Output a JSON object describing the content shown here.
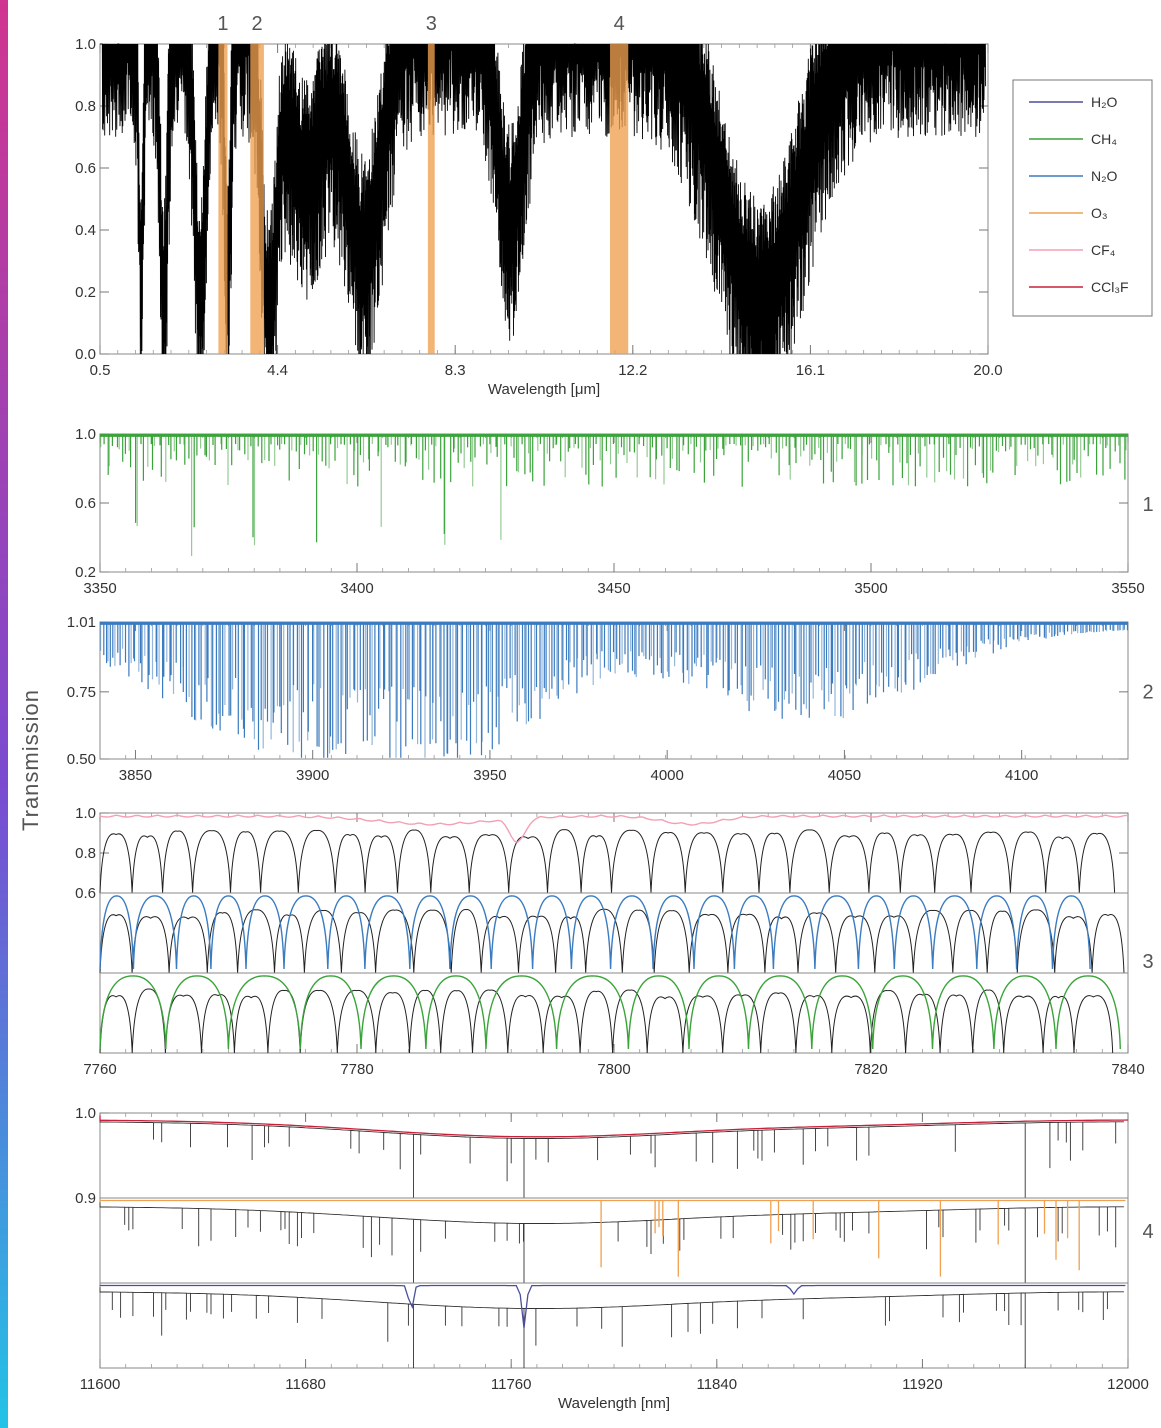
{
  "figure": {
    "ylabel": "Transmission",
    "legend": {
      "placement": "right-of-top-panel",
      "entries": [
        {
          "name": "H₂O",
          "color": "#4b4f9a"
        },
        {
          "name": "CH₄",
          "color": "#3aa33a"
        },
        {
          "name": "N₂O",
          "color": "#3b7bbf"
        },
        {
          "name": "O₃",
          "color": "#f0a050"
        },
        {
          "name": "CF₄",
          "color": "#f3a0b4"
        },
        {
          "name": "CCl₃F",
          "color": "#c8203a"
        }
      ]
    }
  },
  "chart_data": [
    {
      "id": "overview",
      "type": "line",
      "xlabel": "Wavelength [μm]",
      "xlim": [
        0.5,
        20.0
      ],
      "ylim": [
        0.0,
        1.0
      ],
      "xticks": [
        "0.5",
        "4.4",
        "8.3",
        "12.2",
        "16.1",
        "20.0"
      ],
      "yticks": [
        "0.0",
        "0.2",
        "0.4",
        "0.6",
        "0.8",
        "1.0"
      ],
      "highlight_bands": [
        {
          "label": "1",
          "x": [
            3.1,
            3.3
          ]
        },
        {
          "label": "2",
          "x": [
            3.8,
            4.1
          ]
        },
        {
          "label": "3",
          "x": [
            7.7,
            7.85
          ]
        },
        {
          "label": "4",
          "x": [
            11.7,
            12.1
          ]
        }
      ],
      "series_color": "#000000"
    },
    {
      "id": "band-1",
      "marker": "1",
      "type": "line",
      "xlim": [
        3350,
        3550
      ],
      "ylim": [
        0.2,
        1.0
      ],
      "xticks": [
        "3350",
        "3400",
        "3450",
        "3500",
        "3550"
      ],
      "yticks": [
        "0.2",
        "0.6",
        "1.0"
      ],
      "series_color": "#3aa33a"
    },
    {
      "id": "band-2",
      "marker": "2",
      "type": "line",
      "xlim": [
        3840,
        4130
      ],
      "ylim": [
        0.5,
        1.01
      ],
      "xticks": [
        "3850",
        "3900",
        "3950",
        "4000",
        "4050",
        "4100"
      ],
      "yticks": [
        "0.50",
        "0.75",
        "1.01"
      ],
      "series_color": "#3b7bbf"
    },
    {
      "id": "band-3",
      "marker": "3",
      "type": "line",
      "xlim": [
        7760,
        7840
      ],
      "ylim": [
        0.6,
        1.0
      ],
      "xticks": [
        "7760",
        "7780",
        "7800",
        "7820",
        "7840"
      ],
      "yticks": [
        "0.6",
        "0.8",
        "1.0"
      ],
      "subpanel_colors": [
        "#f3a0b4",
        "#3b7bbf",
        "#3aa33a"
      ]
    },
    {
      "id": "band-4",
      "marker": "4",
      "type": "line",
      "xlabel": "Wavelength [nm]",
      "xlim": [
        11600,
        12000
      ],
      "ylim": [
        0.9,
        1.0
      ],
      "xticks": [
        "11600",
        "11680",
        "11760",
        "11840",
        "11920",
        "12000"
      ],
      "yticks": [
        "0.9",
        "1.0"
      ],
      "subpanel_colors": [
        "#c8203a",
        "#f0a050",
        "#4b4f9a"
      ]
    }
  ]
}
